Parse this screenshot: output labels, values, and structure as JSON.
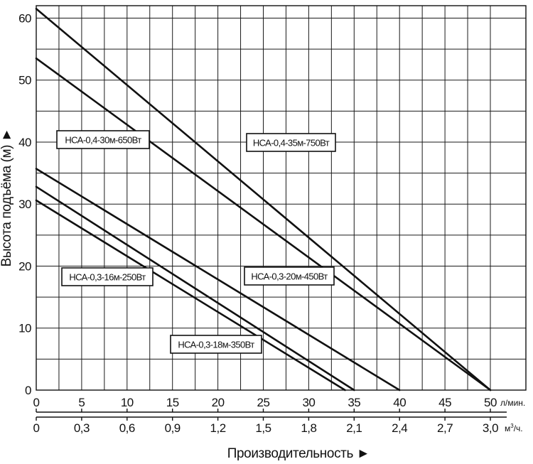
{
  "chart_data": {
    "type": "line",
    "title": "",
    "xlabel": "Производительность ►",
    "ylabel": "Высота подъёма (м) ►",
    "xlim": [
      0,
      50
    ],
    "ylim": [
      0,
      62
    ],
    "grid": true,
    "x_ticks": [
      "0",
      "5",
      "10",
      "15",
      "20",
      "25",
      "30",
      "35",
      "40",
      "45",
      "50"
    ],
    "x_unit": "л/мин.",
    "x2_ticks": [
      "0",
      "0,3",
      "0,6",
      "0,9",
      "1,2",
      "1,5",
      "1,8",
      "2,1",
      "2,4",
      "2,7",
      "3,0"
    ],
    "x2_unit": "м³/ч.",
    "y_ticks": [
      "0",
      "10",
      "20",
      "30",
      "40",
      "50",
      "60"
    ],
    "series": [
      {
        "name": "НСА-0,4-35м-750Вт",
        "x": [
          0,
          50
        ],
        "y": [
          61.5,
          0
        ]
      },
      {
        "name": "НСА-0,4-30м-650Вт",
        "x": [
          0,
          50
        ],
        "y": [
          53.5,
          0
        ]
      },
      {
        "name": "НСА-0,3-20м-450Вт",
        "x": [
          0,
          40
        ],
        "y": [
          35.7,
          0
        ]
      },
      {
        "name": "НСА-0,3-18м-350Вт",
        "x": [
          0,
          35
        ],
        "y": [
          32.8,
          0
        ]
      },
      {
        "name": "НСА-0,3-16м-250Вт",
        "x": [
          0,
          34
        ],
        "y": [
          30.6,
          0
        ]
      }
    ]
  }
}
